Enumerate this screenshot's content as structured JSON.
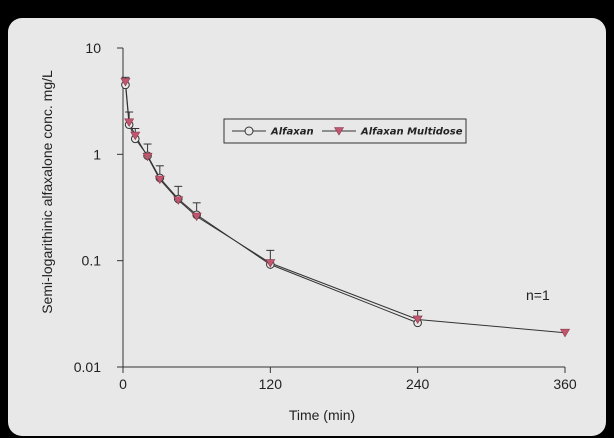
{
  "chart_data": {
    "type": "line",
    "xlabel": "Time (min)",
    "ylabel": "Semi-logarithinic alfaxalone conc. mg/L",
    "y_scale": "log",
    "xlim": [
      0,
      360
    ],
    "ylim": [
      0.01,
      10
    ],
    "x_ticks": [
      "0",
      "120",
      "240",
      "360"
    ],
    "y_ticks": [
      "10",
      "1",
      "0.1",
      "0.01"
    ],
    "legend_position": "top-center",
    "annotation": "n=1",
    "series": [
      {
        "name": "Alfaxan",
        "marker": "open-circle",
        "color": "#333333",
        "x": [
          2,
          5,
          10,
          20,
          30,
          45,
          60,
          120,
          240
        ],
        "y": [
          4.5,
          1.9,
          1.4,
          0.97,
          0.6,
          0.38,
          0.27,
          0.092,
          0.026
        ],
        "error_upper": [
          5.3,
          2.5,
          1.75,
          1.25,
          0.78,
          0.5,
          0.35,
          0.125,
          0.034
        ]
      },
      {
        "name": "Alfaxan Multidose",
        "marker": "filled-triangle-down",
        "color": "#c2566e",
        "x": [
          2,
          5,
          10,
          20,
          30,
          45,
          60,
          120,
          240,
          360
        ],
        "y": [
          4.8,
          2.0,
          1.5,
          0.95,
          0.58,
          0.37,
          0.26,
          0.095,
          0.028,
          0.021
        ]
      }
    ]
  }
}
